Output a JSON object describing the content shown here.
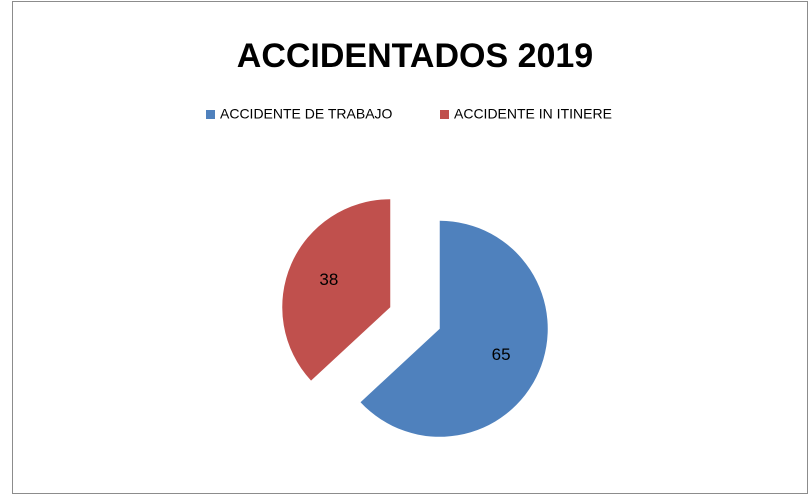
{
  "chart_data": {
    "type": "pie",
    "title": "ACCIDENTADOS 2019",
    "categories": [
      "ACCIDENTE DE TRABAJO",
      "ACCIDENTE IN ITINERE"
    ],
    "values": [
      65,
      38
    ],
    "colors": [
      "#4f81bd",
      "#c0504d"
    ],
    "legend": "top",
    "exploded": true
  }
}
